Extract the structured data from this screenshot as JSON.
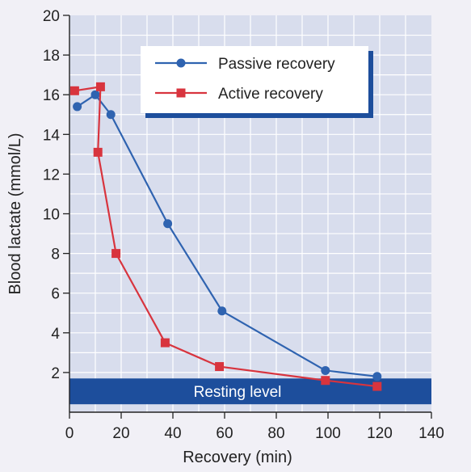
{
  "chart_data": {
    "type": "line",
    "title": "",
    "xlabel": "Recovery (min)",
    "ylabel": "Blood lactate (mmol/L)",
    "xlim": [
      0,
      140
    ],
    "ylim": [
      0,
      20
    ],
    "x_ticks": [
      0,
      20,
      40,
      60,
      80,
      100,
      120,
      140
    ],
    "y_ticks": [
      2,
      4,
      6,
      8,
      10,
      12,
      14,
      16,
      18,
      20
    ],
    "grid": true,
    "legend_position": "top-right",
    "series": [
      {
        "name": "Passive recovery",
        "color": "#2f63b0",
        "marker": "circle",
        "points": [
          {
            "x": 3,
            "y": 15.4
          },
          {
            "x": 10,
            "y": 16.0
          },
          {
            "x": 16,
            "y": 15.0
          },
          {
            "x": 38,
            "y": 9.5
          },
          {
            "x": 59,
            "y": 5.1
          },
          {
            "x": 99,
            "y": 2.1
          },
          {
            "x": 119,
            "y": 1.8
          }
        ]
      },
      {
        "name": "Active recovery",
        "color": "#d8343e",
        "marker": "square",
        "points": [
          {
            "x": 2,
            "y": 16.2
          },
          {
            "x": 12,
            "y": 16.4
          },
          {
            "x": 11,
            "y": 13.1
          },
          {
            "x": 18,
            "y": 8.0
          },
          {
            "x": 37,
            "y": 3.5
          },
          {
            "x": 58,
            "y": 2.3
          },
          {
            "x": 99,
            "y": 1.6
          },
          {
            "x": 119,
            "y": 1.3
          }
        ]
      }
    ],
    "reference_band": {
      "label": "Resting level",
      "y_from": 0.4,
      "y_to": 1.7,
      "color": "#1d4e9c"
    }
  }
}
